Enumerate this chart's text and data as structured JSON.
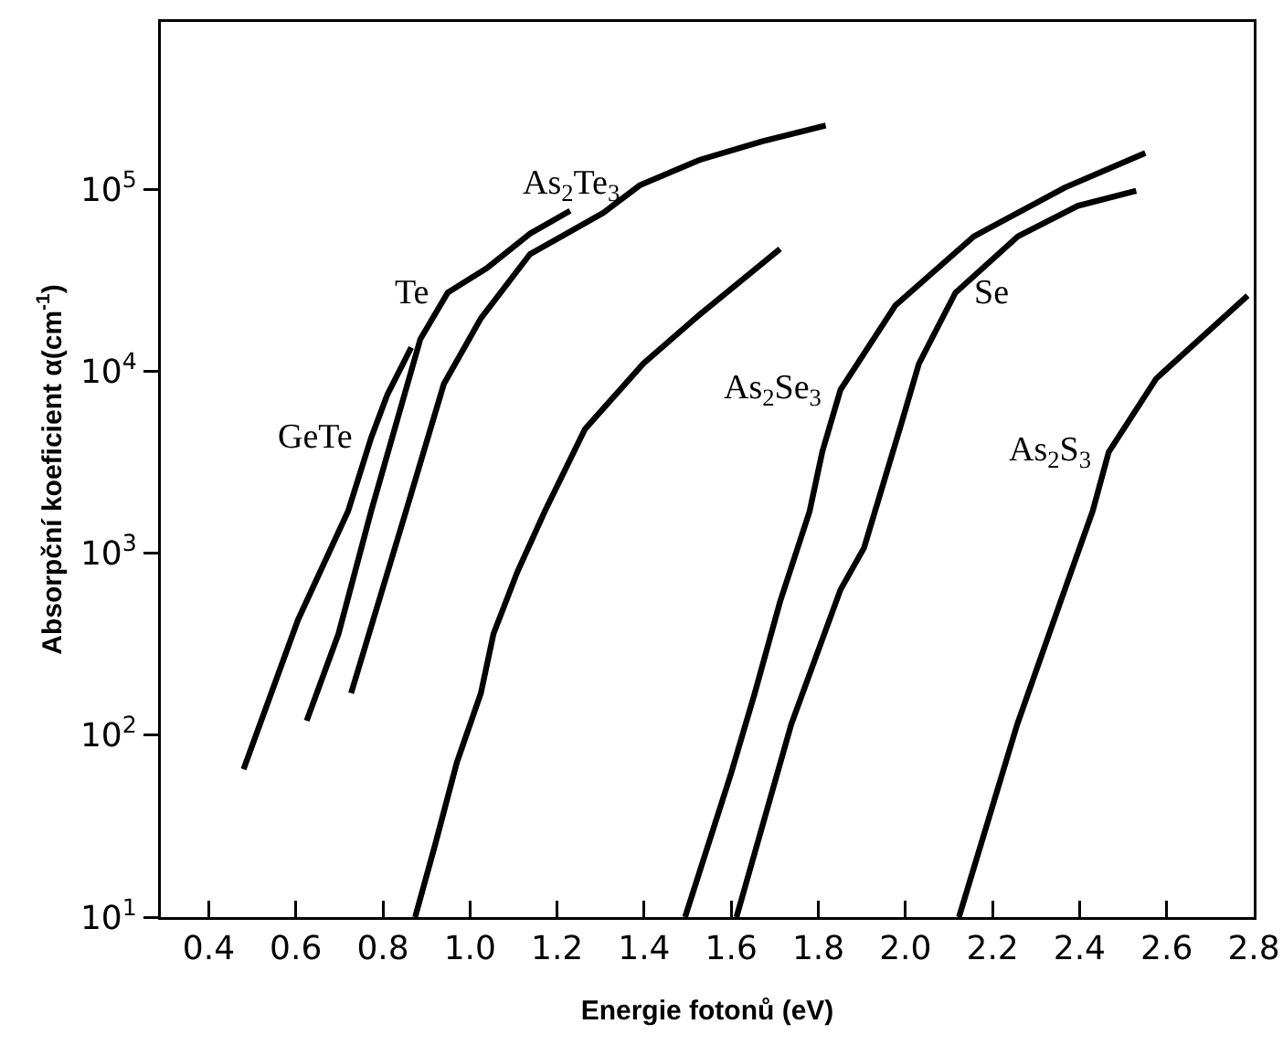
{
  "chart_data": {
    "type": "line",
    "xlabel": "Energie fotonů (eV)",
    "ylabel": "Absorpční koeficient α(cm$^{-1}$)",
    "log": "y",
    "grid": false,
    "legend": false,
    "marker": "none",
    "line_style": "solid",
    "xlim": [
      0.29,
      2.8
    ],
    "xticks": [
      0.4,
      0.6,
      0.8,
      {
        "value": 1,
        "label": "1.0"
      },
      1.2,
      1.4,
      1.6,
      1.8,
      {
        "value": 2,
        "label": "2.0"
      },
      2.2,
      2.4,
      2.6,
      2.8
    ],
    "ylim": [
      10,
      830000
    ],
    "yticks": [
      {
        "value": 10,
        "label": "10$^{1}$"
      },
      {
        "value": 100,
        "label": "10$^{2}$"
      },
      {
        "value": 1000,
        "label": "10$^{3}$"
      },
      {
        "value": 10000,
        "label": "10$^{4}$"
      },
      {
        "value": 100000,
        "label": "10$^{5}$"
      }
    ],
    "series": [
      {
        "name": "GeTe",
        "color": "#000000",
        "x": [
          0.48,
          0.605,
          0.72,
          0.773,
          0.81,
          0.865
        ],
        "values": [
          65,
          430,
          1700,
          4300,
          7400,
          13500
        ]
      },
      {
        "name": "Te",
        "color": "#000000",
        "x": [
          0.625,
          0.698,
          0.773,
          0.886,
          0.949,
          1.04,
          1.138,
          1.23
        ],
        "values": [
          120,
          360,
          1700,
          15000,
          27000,
          37000,
          57000,
          76000
        ]
      },
      {
        "name": "As$_{2}$Te$_{3}$",
        "color": "#000000",
        "x": [
          0.727,
          0.853,
          0.94,
          1.025,
          1.138,
          1.306,
          1.39,
          1.528,
          1.67,
          1.817
        ],
        "values": [
          170,
          1700,
          8500,
          19500,
          44000,
          74000,
          105000,
          145000,
          183000,
          224000
        ]
      },
      {
        "color": "#000000",
        "x": [
          0.874,
          0.92,
          0.97,
          1.025,
          1.054,
          1.109,
          1.172,
          1.264,
          1.398,
          1.528,
          1.712
        ],
        "values": [
          10,
          25,
          71,
          170,
          360,
          790,
          1700,
          4800,
          11000,
          20500,
          47000
        ]
      },
      {
        "name": "As$_{2}$Se$_{3}$",
        "color": "#000000",
        "x": [
          1.494,
          1.6,
          1.654,
          1.712,
          1.78,
          1.809,
          1.851,
          1.977,
          2.157,
          2.366,
          2.551
        ],
        "values": [
          10,
          62,
          170,
          540,
          1700,
          3600,
          7900,
          23000,
          55000,
          102000,
          158000
        ]
      },
      {
        "name": "Se",
        "color": "#000000",
        "x": [
          1.612,
          1.738,
          1.851,
          1.905,
          1.989,
          2.031,
          2.115,
          2.258,
          2.396,
          2.53
        ],
        "values": [
          10,
          115,
          630,
          1070,
          5000,
          11000,
          27000,
          55000,
          81000,
          98000
        ]
      },
      {
        "name": "As$_{2}$S$_{3}$",
        "color": "#000000",
        "x": [
          2.123,
          2.257,
          2.366,
          2.43,
          2.467,
          2.576,
          2.786
        ],
        "values": [
          10,
          115,
          630,
          1700,
          3600,
          9100,
          26000
        ]
      }
    ]
  }
}
